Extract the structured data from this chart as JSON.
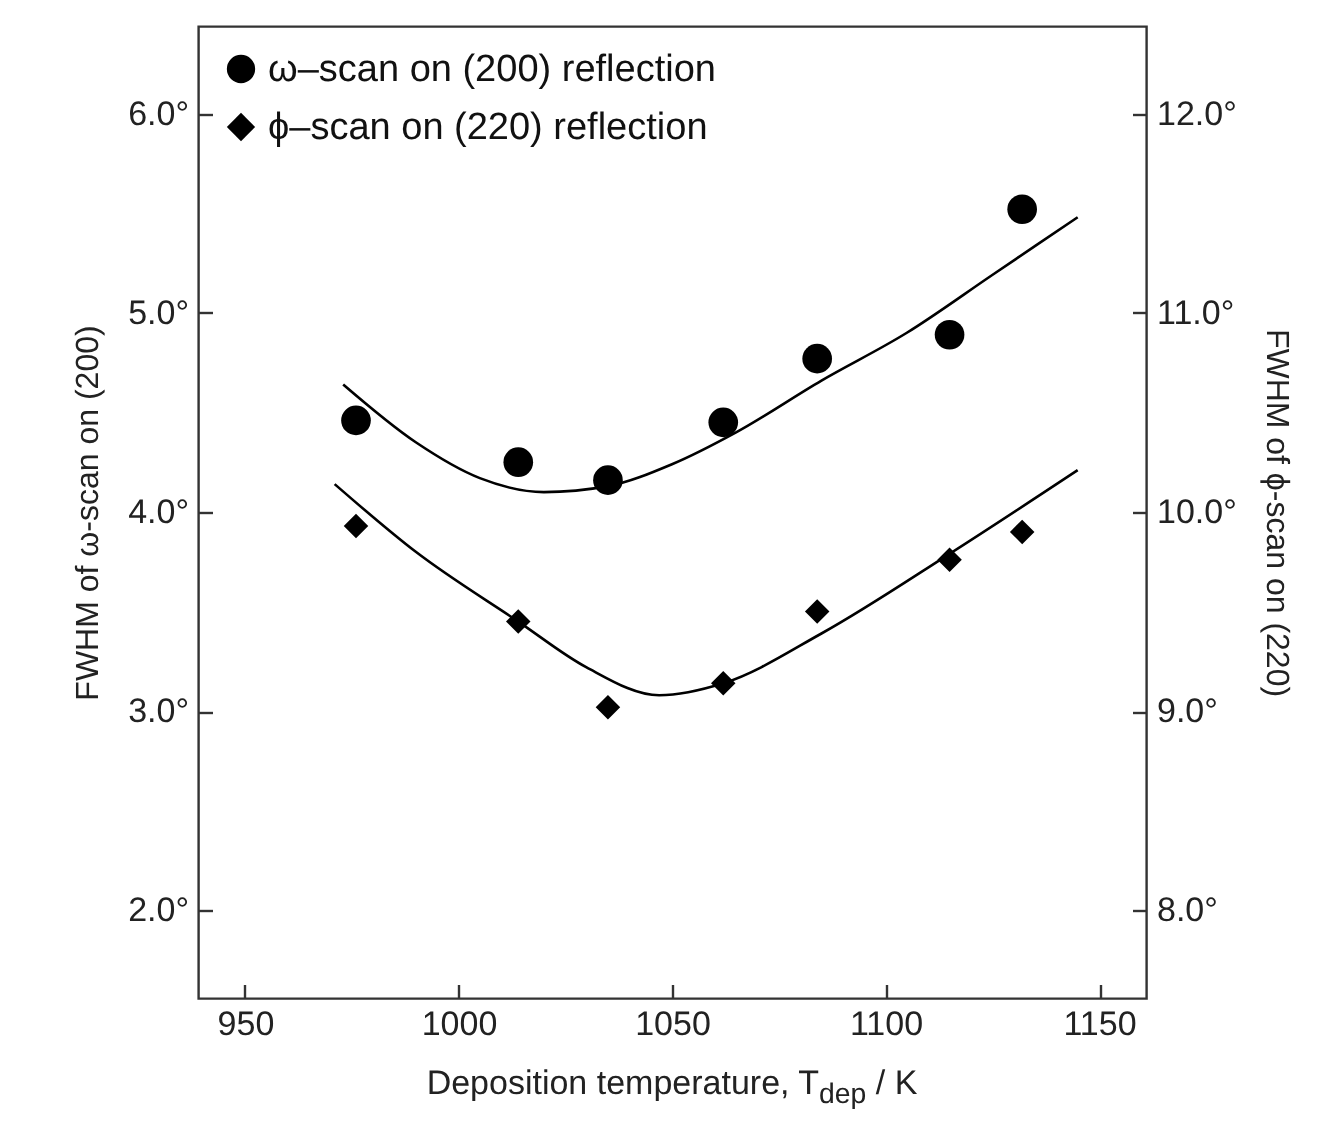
{
  "chart_data": {
    "type": "scatter",
    "xlabel": "Deposition temperature, T$_{dep}$ / K",
    "ylabel": "FWHM of ω-scan on (200)",
    "y2label": "FWHM of ϕ-scan on (220)",
    "xlim": [
      939,
      1161
    ],
    "xticks": [
      950,
      1000,
      1050,
      1100,
      1150
    ],
    "ylim": [
      1.56,
      6.44
    ],
    "yticks": [
      {
        "value": 2,
        "label": "2.0°"
      },
      {
        "value": 3,
        "label": "3.0°"
      },
      {
        "value": 4,
        "label": "4.0°"
      },
      {
        "value": 5,
        "label": "5.0°"
      },
      {
        "value": 6,
        "label": "6.0°"
      }
    ],
    "y2lim": [
      7.56,
      12.44
    ],
    "y2ticks": [
      {
        "value": 8,
        "label": "8.0°"
      },
      {
        "value": 9,
        "label": "9.0°"
      },
      {
        "value": 10,
        "label": "10.0°"
      },
      {
        "value": 11,
        "label": "11.0°"
      },
      {
        "value": 12,
        "label": "12.0°"
      }
    ],
    "grid": false,
    "legend": "top left",
    "series": [
      {
        "name": "ω–scan on (200) reflection",
        "marker": "circle",
        "color": "#000000",
        "x": [
          976,
          1014,
          1035,
          1062,
          1084,
          1115,
          1132
        ],
        "values": [
          4.46,
          4.25,
          4.16,
          4.45,
          4.77,
          4.89,
          5.52
        ]
      },
      {
        "name": "ϕ–scan on (220) reflection",
        "marker": "diamond",
        "axis": "y2",
        "color": "#000000",
        "x": [
          976,
          1014,
          1035,
          1062,
          1084,
          1115,
          1132
        ],
        "values": [
          9.93,
          9.45,
          9.02,
          9.14,
          9.5,
          9.76,
          9.9
        ]
      },
      {
        "type": "line",
        "line_style": "solid",
        "color": "#000000",
        "x": [
          973,
          990,
          1005,
          1020,
          1035,
          1050,
          1065,
          1085,
          1105,
          1125,
          1145
        ],
        "values": [
          4.64,
          4.35,
          4.17,
          4.1,
          4.13,
          4.24,
          4.4,
          4.66,
          4.9,
          5.19,
          5.48
        ]
      },
      {
        "type": "line",
        "line_style": "solid",
        "axis": "y2",
        "color": "#000000",
        "x": [
          971,
          990,
          1014,
          1030,
          1047,
          1062,
          1085,
          1115,
          1145
        ],
        "values": [
          10.14,
          9.8,
          9.45,
          9.22,
          9.08,
          9.14,
          9.39,
          9.79,
          10.21
        ]
      }
    ]
  }
}
